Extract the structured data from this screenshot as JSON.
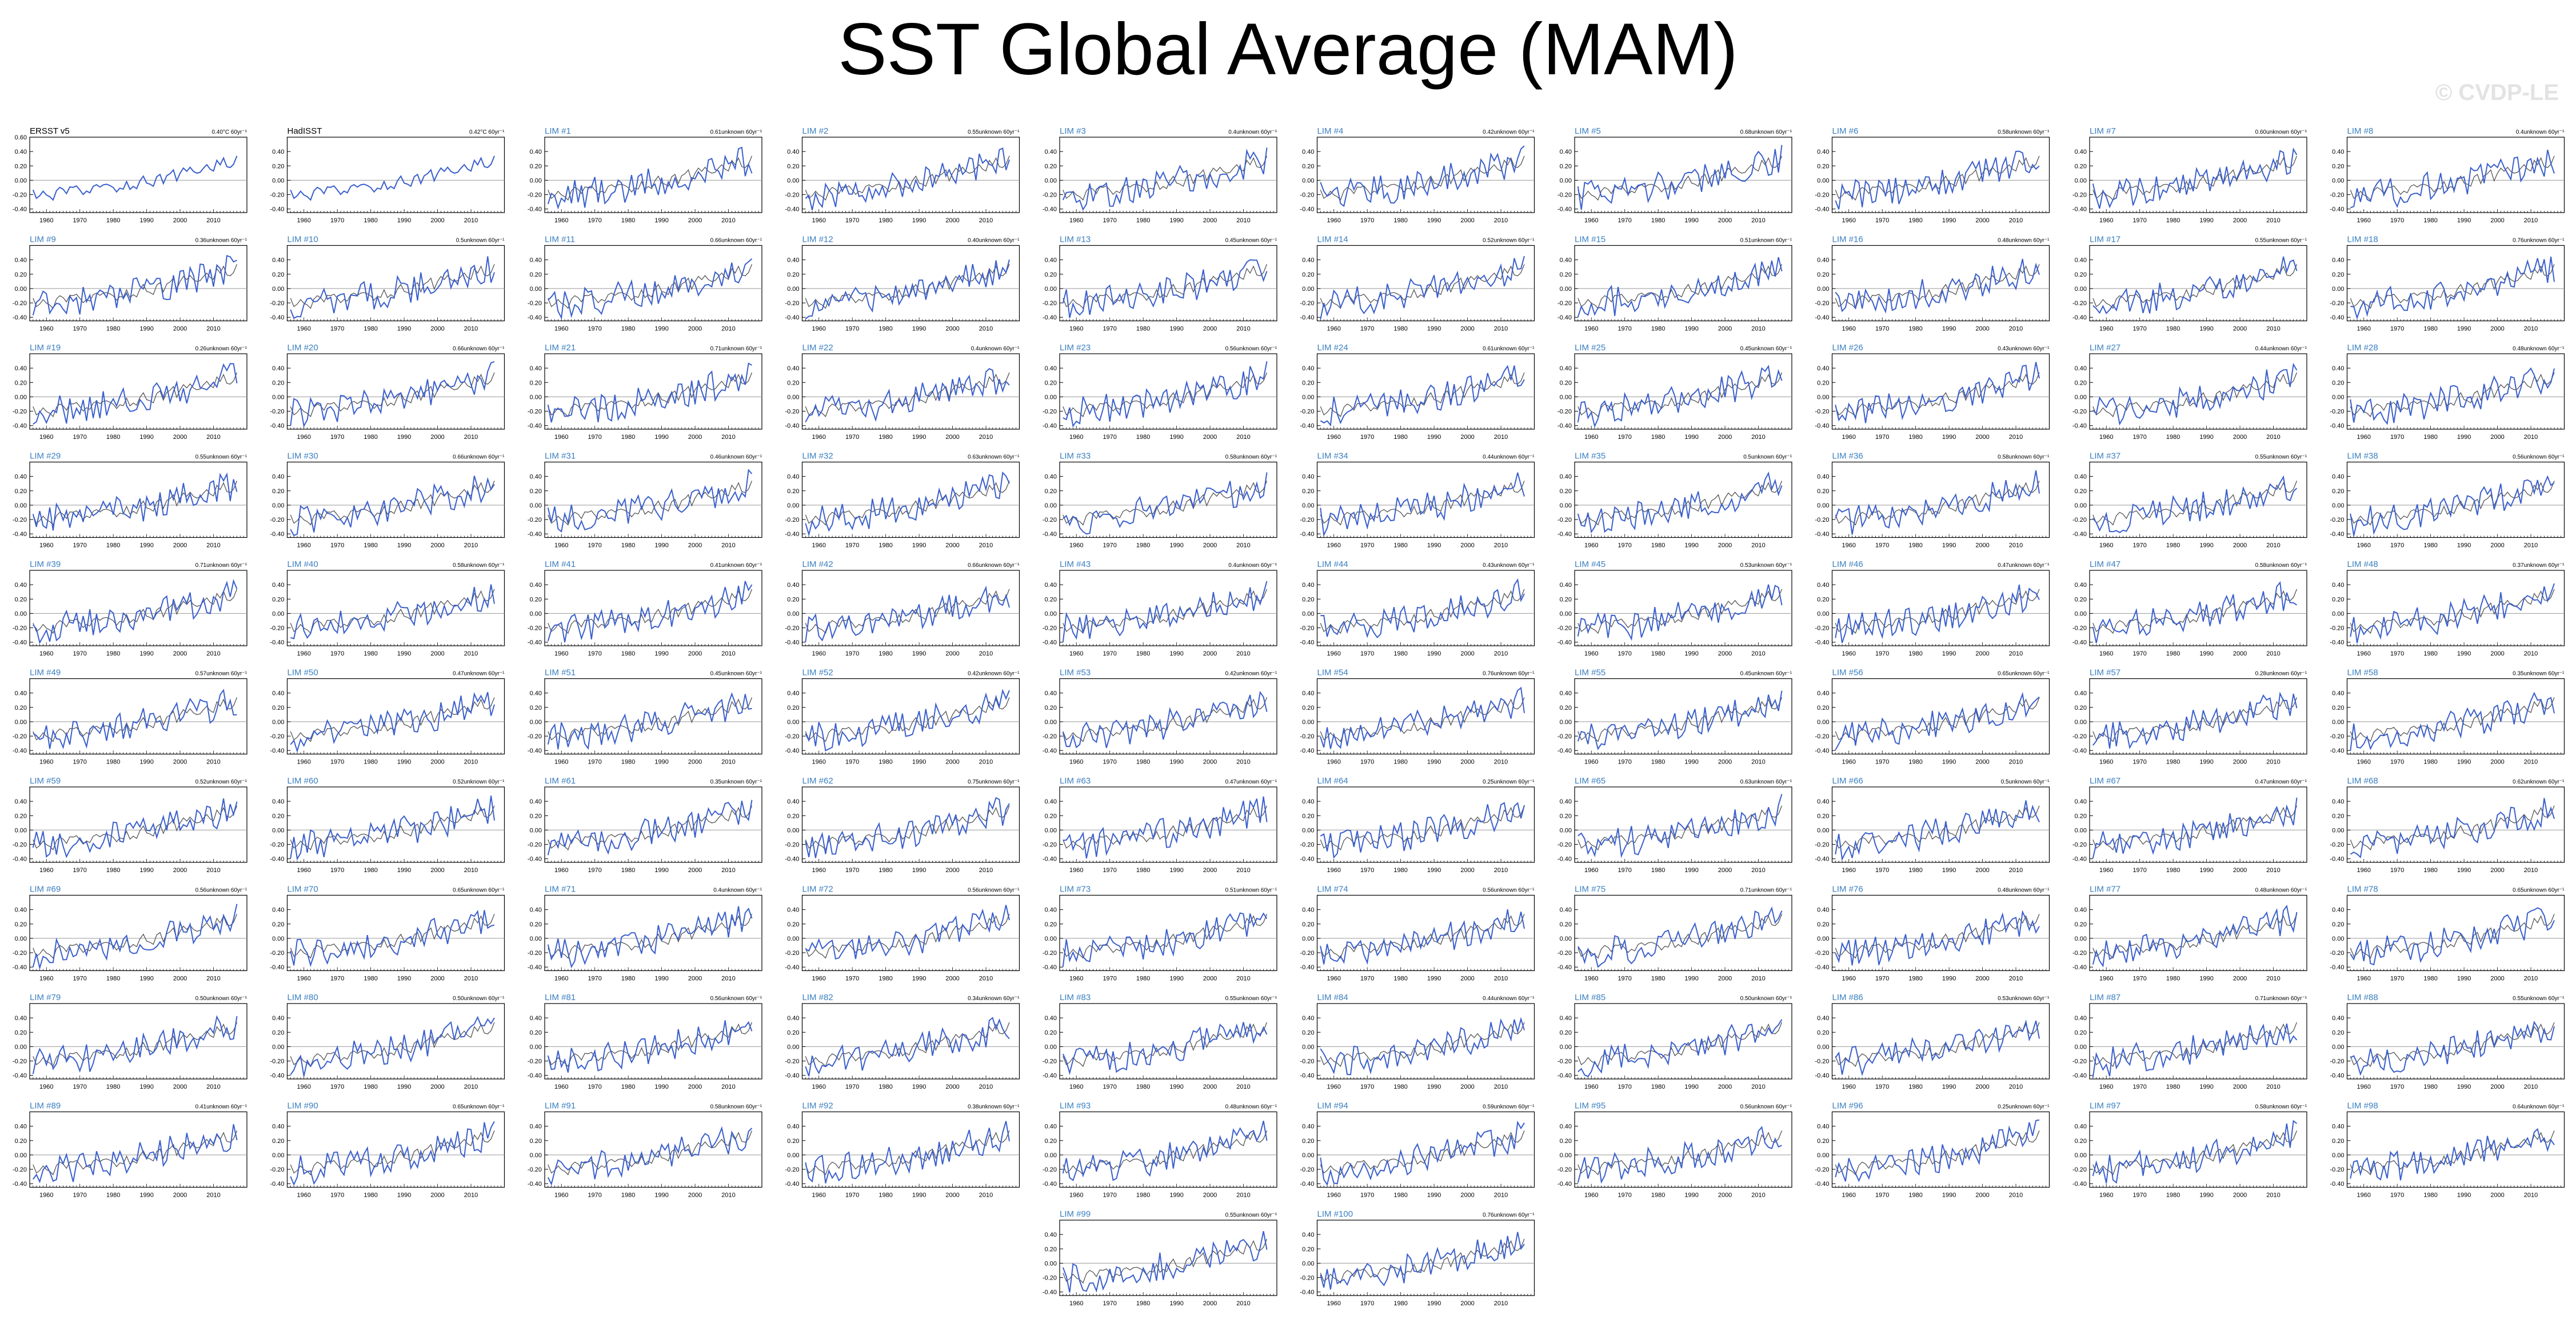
{
  "page": {
    "title": "SST Global Average (MAM)",
    "watermark": "© CVDP-LE"
  },
  "colors": {
    "ensemble": "#3a5fcd",
    "observed": "#555555",
    "zero_line": "#999999",
    "panel_title_obs": "#000000",
    "panel_title_member": "#3a7fc0"
  },
  "chart_data": {
    "type": "line",
    "panel_count": 102,
    "columns": 10,
    "xlim": [
      1955,
      2020
    ],
    "ylim": [
      -0.45,
      0.6
    ],
    "x_ticks": [
      1960,
      1970,
      1980,
      1990,
      2000,
      2010
    ],
    "y_ticks": [
      -0.4,
      -0.2,
      0.0,
      0.2,
      0.4
    ],
    "y_tick_labels": [
      "-0.40",
      "-0.20",
      "0.00",
      "0.20",
      "0.40"
    ],
    "y_ticks_first_panel": [
      -0.4,
      -0.2,
      0.0,
      0.2,
      0.4,
      0.6
    ],
    "y_tick_labels_first_panel": [
      "-0.40",
      "-0.20",
      "0.00",
      "0.20",
      "0.40",
      "0.60"
    ],
    "years": [
      1956,
      2017
    ],
    "panels": [
      {
        "title": "ERSST v5",
        "trend": "0.40°C 60yr⁻¹",
        "obs": true
      },
      {
        "title": "HadISST",
        "trend": "0.42°C 60yr⁻¹",
        "obs": true
      },
      {
        "title": "LIM #1",
        "trend": "0.61unknown 60yr⁻¹"
      },
      {
        "title": "LIM #2",
        "trend": "0.55unknown 60yr⁻¹"
      },
      {
        "title": "LIM #3",
        "trend": "0.4unknown 60yr⁻¹"
      },
      {
        "title": "LIM #4",
        "trend": "0.42unknown 60yr⁻¹"
      },
      {
        "title": "LIM #5",
        "trend": "0.68unknown 60yr⁻¹"
      },
      {
        "title": "LIM #6",
        "trend": "0.58unknown 60yr⁻¹"
      },
      {
        "title": "LIM #7",
        "trend": "0.60unknown 60yr⁻¹"
      },
      {
        "title": "LIM #8",
        "trend": "0.4unknown 60yr⁻¹"
      },
      {
        "title": "LIM #9",
        "trend": "0.36unknown 60yr⁻¹"
      },
      {
        "title": "LIM #10",
        "trend": "0.5unknown 60yr⁻¹"
      },
      {
        "title": "LIM #11",
        "trend": "0.66unknown 60yr⁻¹"
      },
      {
        "title": "LIM #12",
        "trend": "0.40unknown 60yr⁻¹"
      },
      {
        "title": "LIM #13",
        "trend": "0.45unknown 60yr⁻¹"
      },
      {
        "title": "LIM #14",
        "trend": "0.52unknown 60yr⁻¹"
      },
      {
        "title": "LIM #15",
        "trend": "0.51unknown 60yr⁻¹"
      },
      {
        "title": "LIM #16",
        "trend": "0.48unknown 60yr⁻¹"
      },
      {
        "title": "LIM #17",
        "trend": "0.55unknown 60yr⁻¹"
      },
      {
        "title": "LIM #18",
        "trend": "0.76unknown 60yr⁻¹"
      },
      {
        "title": "LIM #19",
        "trend": "0.26unknown 60yr⁻¹"
      },
      {
        "title": "LIM #20",
        "trend": "0.66unknown 60yr⁻¹"
      },
      {
        "title": "LIM #21",
        "trend": "0.71unknown 60yr⁻¹"
      },
      {
        "title": "LIM #22",
        "trend": "0.4unknown 60yr⁻¹"
      },
      {
        "title": "LIM #23",
        "trend": "0.56unknown 60yr⁻¹"
      },
      {
        "title": "LIM #24",
        "trend": "0.61unknown 60yr⁻¹"
      },
      {
        "title": "LIM #25",
        "trend": "0.45unknown 60yr⁻¹"
      },
      {
        "title": "LIM #26",
        "trend": "0.43unknown 60yr⁻¹"
      },
      {
        "title": "LIM #27",
        "trend": "0.44unknown 60yr⁻¹"
      },
      {
        "title": "LIM #28",
        "trend": "0.48unknown 60yr⁻¹"
      },
      {
        "title": "LIM #29",
        "trend": "0.55unknown 60yr⁻¹"
      },
      {
        "title": "LIM #30",
        "trend": "0.66unknown 60yr⁻¹"
      },
      {
        "title": "LIM #31",
        "trend": "0.46unknown 60yr⁻¹"
      },
      {
        "title": "LIM #32",
        "trend": "0.63unknown 60yr⁻¹"
      },
      {
        "title": "LIM #33",
        "trend": "0.58unknown 60yr⁻¹"
      },
      {
        "title": "LIM #34",
        "trend": "0.44unknown 60yr⁻¹"
      },
      {
        "title": "LIM #35",
        "trend": "0.5unknown 60yr⁻¹"
      },
      {
        "title": "LIM #36",
        "trend": "0.58unknown 60yr⁻¹"
      },
      {
        "title": "LIM #37",
        "trend": "0.55unknown 60yr⁻¹"
      },
      {
        "title": "LIM #38",
        "trend": "0.56unknown 60yr⁻¹"
      },
      {
        "title": "LIM #39",
        "trend": "0.71unknown 60yr⁻¹"
      },
      {
        "title": "LIM #40",
        "trend": "0.58unknown 60yr⁻¹"
      },
      {
        "title": "LIM #41",
        "trend": "0.41unknown 60yr⁻¹"
      },
      {
        "title": "LIM #42",
        "trend": "0.66unknown 60yr⁻¹"
      },
      {
        "title": "LIM #43",
        "trend": "0.4unknown 60yr⁻¹"
      },
      {
        "title": "LIM #44",
        "trend": "0.43unknown 60yr⁻¹"
      },
      {
        "title": "LIM #45",
        "trend": "0.53unknown 60yr⁻¹"
      },
      {
        "title": "LIM #46",
        "trend": "0.47unknown 60yr⁻¹"
      },
      {
        "title": "LIM #47",
        "trend": "0.58unknown 60yr⁻¹"
      },
      {
        "title": "LIM #48",
        "trend": "0.37unknown 60yr⁻¹"
      },
      {
        "title": "LIM #49",
        "trend": "0.57unknown 60yr⁻¹"
      },
      {
        "title": "LIM #50",
        "trend": "0.47unknown 60yr⁻¹"
      },
      {
        "title": "LIM #51",
        "trend": "0.45unknown 60yr⁻¹"
      },
      {
        "title": "LIM #52",
        "trend": "0.42unknown 60yr⁻¹"
      },
      {
        "title": "LIM #53",
        "trend": "0.42unknown 60yr⁻¹"
      },
      {
        "title": "LIM #54",
        "trend": "0.76unknown 60yr⁻¹"
      },
      {
        "title": "LIM #55",
        "trend": "0.45unknown 60yr⁻¹"
      },
      {
        "title": "LIM #56",
        "trend": "0.65unknown 60yr⁻¹"
      },
      {
        "title": "LIM #57",
        "trend": "0.28unknown 60yr⁻¹"
      },
      {
        "title": "LIM #58",
        "trend": "0.35unknown 60yr⁻¹"
      },
      {
        "title": "LIM #59",
        "trend": "0.52unknown 60yr⁻¹"
      },
      {
        "title": "LIM #60",
        "trend": "0.52unknown 60yr⁻¹"
      },
      {
        "title": "LIM #61",
        "trend": "0.35unknown 60yr⁻¹"
      },
      {
        "title": "LIM #62",
        "trend": "0.75unknown 60yr⁻¹"
      },
      {
        "title": "LIM #63",
        "trend": "0.47unknown 60yr⁻¹"
      },
      {
        "title": "LIM #64",
        "trend": "0.25unknown 60yr⁻¹"
      },
      {
        "title": "LIM #65",
        "trend": "0.63unknown 60yr⁻¹"
      },
      {
        "title": "LIM #66",
        "trend": "0.5unknown 60yr⁻¹"
      },
      {
        "title": "LIM #67",
        "trend": "0.47unknown 60yr⁻¹"
      },
      {
        "title": "LIM #68",
        "trend": "0.62unknown 60yr⁻¹"
      },
      {
        "title": "LIM #69",
        "trend": "0.56unknown 60yr⁻¹"
      },
      {
        "title": "LIM #70",
        "trend": "0.65unknown 60yr⁻¹"
      },
      {
        "title": "LIM #71",
        "trend": "0.4unknown 60yr⁻¹"
      },
      {
        "title": "LIM #72",
        "trend": "0.56unknown 60yr⁻¹"
      },
      {
        "title": "LIM #73",
        "trend": "0.51unknown 60yr⁻¹"
      },
      {
        "title": "LIM #74",
        "trend": "0.56unknown 60yr⁻¹"
      },
      {
        "title": "LIM #75",
        "trend": "0.71unknown 60yr⁻¹"
      },
      {
        "title": "LIM #76",
        "trend": "0.48unknown 60yr⁻¹"
      },
      {
        "title": "LIM #77",
        "trend": "0.48unknown 60yr⁻¹"
      },
      {
        "title": "LIM #78",
        "trend": "0.65unknown 60yr⁻¹"
      },
      {
        "title": "LIM #79",
        "trend": "0.50unknown 60yr⁻¹"
      },
      {
        "title": "LIM #80",
        "trend": "0.50unknown 60yr⁻¹"
      },
      {
        "title": "LIM #81",
        "trend": "0.56unknown 60yr⁻¹"
      },
      {
        "title": "LIM #82",
        "trend": "0.34unknown 60yr⁻¹"
      },
      {
        "title": "LIM #83",
        "trend": "0.55unknown 60yr⁻¹"
      },
      {
        "title": "LIM #84",
        "trend": "0.44unknown 60yr⁻¹"
      },
      {
        "title": "LIM #85",
        "trend": "0.50unknown 60yr⁻¹"
      },
      {
        "title": "LIM #86",
        "trend": "0.53unknown 60yr⁻¹"
      },
      {
        "title": "LIM #87",
        "trend": "0.71unknown 60yr⁻¹"
      },
      {
        "title": "LIM #88",
        "trend": "0.55unknown 60yr⁻¹"
      },
      {
        "title": "LIM #89",
        "trend": "0.41unknown 60yr⁻¹"
      },
      {
        "title": "LIM #90",
        "trend": "0.65unknown 60yr⁻¹"
      },
      {
        "title": "LIM #91",
        "trend": "0.58unknown 60yr⁻¹"
      },
      {
        "title": "LIM #92",
        "trend": "0.38unknown 60yr⁻¹"
      },
      {
        "title": "LIM #93",
        "trend": "0.48unknown 60yr⁻¹"
      },
      {
        "title": "LIM #94",
        "trend": "0.59unknown 60yr⁻¹"
      },
      {
        "title": "LIM #95",
        "trend": "0.56unknown 60yr⁻¹"
      },
      {
        "title": "LIM #96",
        "trend": "0.25unknown 60yr⁻¹"
      },
      {
        "title": "LIM #97",
        "trend": "0.58unknown 60yr⁻¹"
      },
      {
        "title": "LIM #98",
        "trend": "0.64unknown 60yr⁻¹"
      },
      {
        "title": "LIM #99",
        "trend": "0.55unknown 60yr⁻¹"
      },
      {
        "title": "LIM #100",
        "trend": "0.76unknown 60yr⁻¹"
      }
    ]
  }
}
